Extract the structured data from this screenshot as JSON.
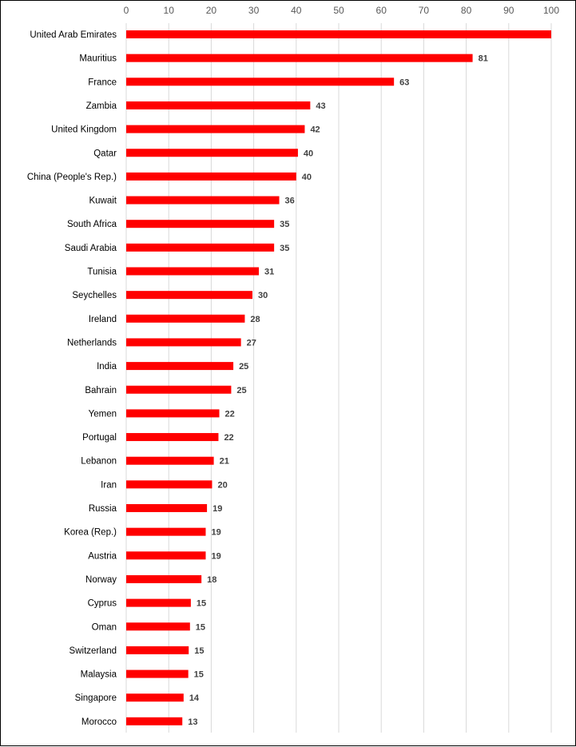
{
  "chart_data": {
    "type": "bar",
    "orientation": "horizontal",
    "title": "",
    "xlabel": "",
    "ylabel": "",
    "xlim": [
      0,
      100
    ],
    "x_ticks": [
      0,
      10,
      20,
      30,
      40,
      50,
      60,
      70,
      80,
      90,
      100
    ],
    "x_axis_position": "top",
    "grid": true,
    "legend": "none",
    "bar_color": "#ff0000",
    "categories": [
      "United Arab Emirates",
      "Mauritius",
      "France",
      "Zambia",
      "United Kingdom",
      "Qatar",
      "China (People's Rep.)",
      "Kuwait",
      "South Africa",
      "Saudi Arabia",
      "Tunisia",
      "Seychelles",
      "Ireland",
      "Netherlands",
      "India",
      "Bahrain",
      "Yemen",
      "Portugal",
      "Lebanon",
      "Iran",
      "Russia",
      "Korea (Rep.)",
      "Austria",
      "Norway",
      "Cyprus",
      "Oman",
      "Switzerland",
      "Malaysia",
      "Singapore",
      "Morocco"
    ],
    "values": [
      100,
      81,
      63,
      43,
      42,
      40,
      40,
      36,
      35,
      35,
      31,
      30,
      28,
      27,
      25,
      25,
      22,
      22,
      21,
      20,
      19,
      19,
      19,
      18,
      15,
      15,
      15,
      15,
      14,
      13
    ],
    "data_labels": [
      "",
      "81",
      "63",
      "43",
      "42",
      "40",
      "40",
      "36",
      "35",
      "35",
      "31",
      "30",
      "28",
      "27",
      "25",
      "25",
      "22",
      "22",
      "21",
      "20",
      "19",
      "19",
      "19",
      "18",
      "15",
      "15",
      "15",
      "15",
      "14",
      "13"
    ],
    "bar_lengths": [
      100,
      81.5,
      63,
      43.3,
      42,
      40.4,
      40,
      36,
      34.8,
      34.8,
      31.2,
      29.7,
      27.9,
      27,
      25.2,
      24.7,
      21.9,
      21.7,
      20.6,
      20.2,
      19,
      18.7,
      18.7,
      17.7,
      15.2,
      15,
      14.7,
      14.6,
      13.5,
      13.2
    ]
  }
}
